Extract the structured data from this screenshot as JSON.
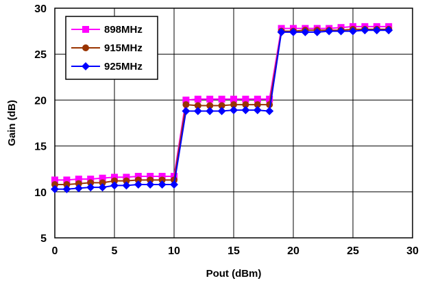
{
  "chart_data": {
    "type": "line",
    "title": "",
    "xlabel": "Pout (dBm)",
    "ylabel": "Gain (dB)",
    "xlim": [
      0,
      30
    ],
    "ylim": [
      5,
      30
    ],
    "xticks": [
      "0",
      "5",
      "10",
      "15",
      "20",
      "25",
      "30"
    ],
    "yticks": [
      "5",
      "10",
      "15",
      "20",
      "25",
      "30"
    ],
    "grid": true,
    "legend_position": "top-left",
    "x": [
      0,
      1,
      2,
      3,
      4,
      5,
      6,
      7,
      8,
      9,
      10,
      11,
      12,
      13,
      14,
      15,
      16,
      17,
      18,
      19,
      20,
      21,
      22,
      23,
      24,
      25,
      26,
      27,
      28
    ],
    "series": [
      {
        "name": "898MHz",
        "color": "#ff00ff",
        "marker": "square",
        "values": [
          11.3,
          11.3,
          11.4,
          11.4,
          11.5,
          11.6,
          11.6,
          11.7,
          11.7,
          11.7,
          11.7,
          20.0,
          20.1,
          20.1,
          20.1,
          20.1,
          20.1,
          20.1,
          20.1,
          27.8,
          27.8,
          27.8,
          27.8,
          27.8,
          27.9,
          28.0,
          28.0,
          28.0,
          28.0
        ]
      },
      {
        "name": "915MHz",
        "color": "#993300",
        "marker": "circle",
        "values": [
          10.8,
          10.8,
          10.9,
          11.0,
          11.0,
          11.2,
          11.2,
          11.3,
          11.3,
          11.3,
          11.3,
          19.5,
          19.4,
          19.4,
          19.4,
          19.5,
          19.5,
          19.5,
          19.5,
          27.5,
          27.5,
          27.6,
          27.6,
          27.6,
          27.6,
          27.7,
          27.7,
          27.7,
          27.7
        ]
      },
      {
        "name": "925MHz",
        "color": "#0000ff",
        "marker": "diamond",
        "values": [
          10.3,
          10.3,
          10.4,
          10.5,
          10.5,
          10.7,
          10.7,
          10.8,
          10.8,
          10.8,
          10.8,
          18.8,
          18.8,
          18.8,
          18.8,
          18.9,
          18.9,
          18.9,
          18.8,
          27.4,
          27.4,
          27.4,
          27.4,
          27.5,
          27.5,
          27.5,
          27.6,
          27.6,
          27.6
        ]
      }
    ]
  }
}
